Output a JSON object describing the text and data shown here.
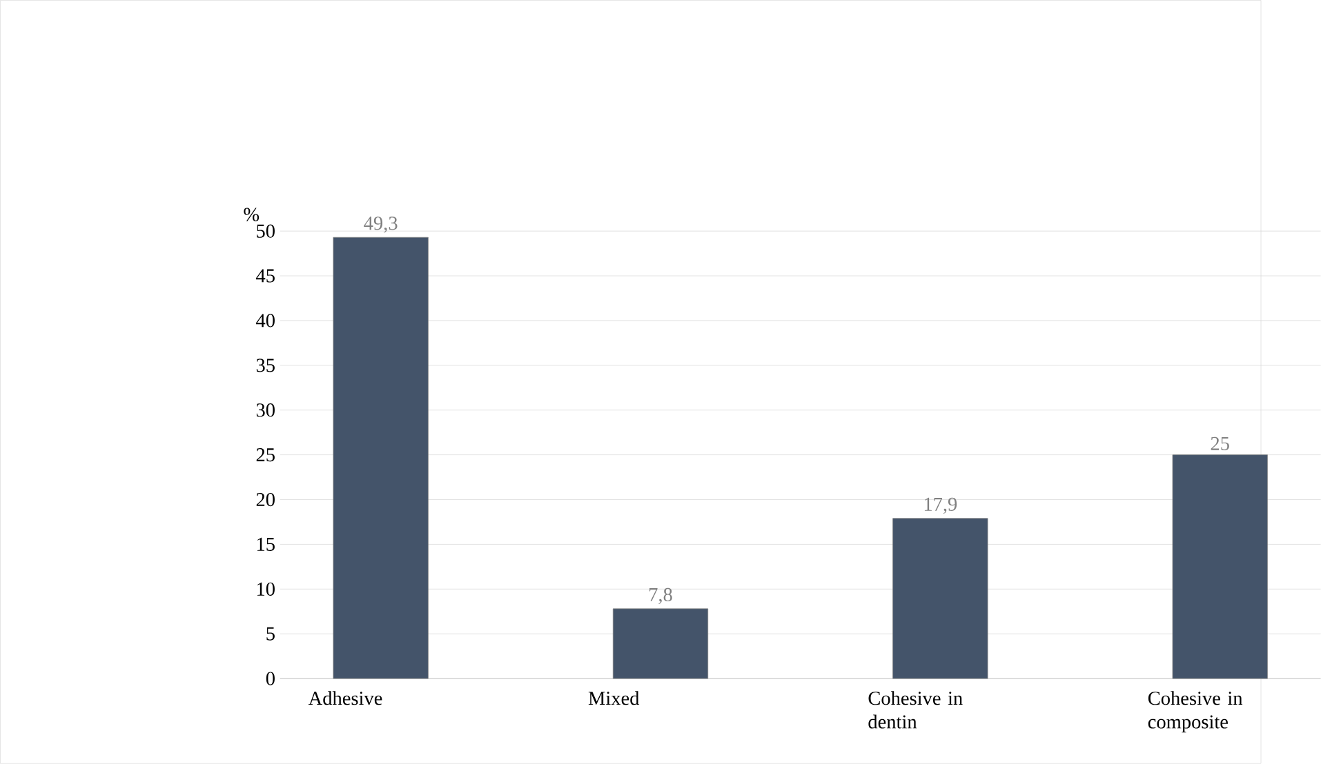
{
  "chart_data": {
    "type": "bar",
    "ylabel": "%",
    "categories": [
      "Adhesive",
      "Mixed",
      "Cohesive in dentin",
      "Cohesive in composite"
    ],
    "values": [
      49.3,
      7.8,
      17.9,
      25
    ],
    "value_labels": [
      "49,3",
      "7,8",
      "17,9",
      "25"
    ],
    "color": "#44546a",
    "ylim": [
      0,
      50
    ],
    "yticks": [
      0,
      5,
      10,
      15,
      20,
      25,
      30,
      35,
      40,
      45,
      50
    ],
    "grid": "y"
  }
}
